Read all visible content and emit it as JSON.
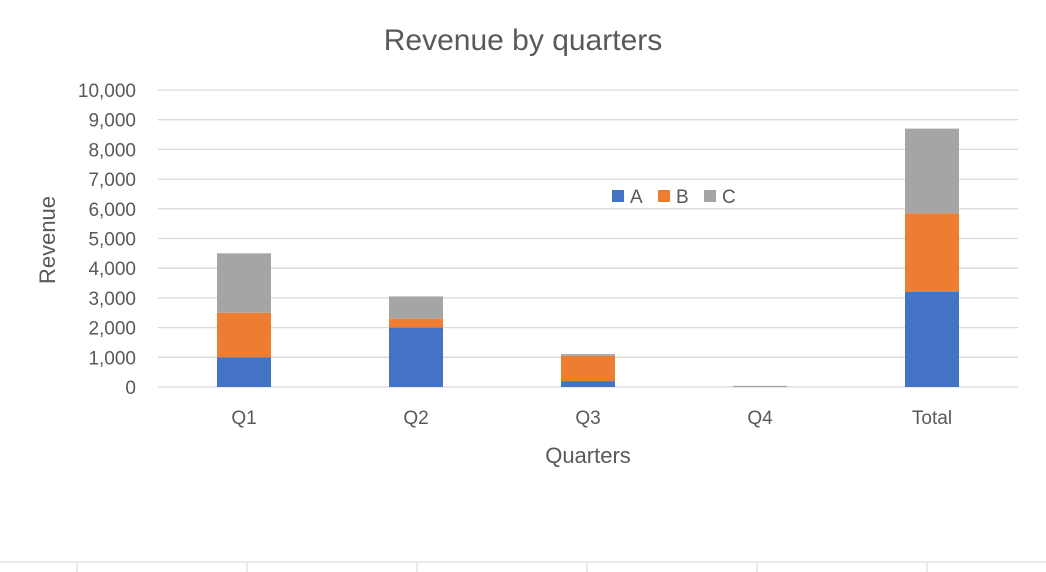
{
  "chart_data": {
    "type": "bar",
    "stacked": true,
    "title": "Revenue by quarters",
    "xlabel": "Quarters",
    "ylabel": "Revenue",
    "categories": [
      "Q1",
      "Q2",
      "Q3",
      "Q4",
      "Total"
    ],
    "series": [
      {
        "name": "A",
        "color": "#4472C4",
        "values": [
          1000,
          2000,
          200,
          0,
          3200
        ]
      },
      {
        "name": "B",
        "color": "#ED7D31",
        "values": [
          1500,
          300,
          850,
          0,
          2650
        ]
      },
      {
        "name": "C",
        "color": "#A5A5A5",
        "values": [
          2000,
          750,
          60,
          40,
          2850
        ]
      }
    ],
    "ylim": [
      0,
      10000
    ],
    "yticks": [
      "0",
      "1,000",
      "2,000",
      "3,000",
      "4,000",
      "5,000",
      "6,000",
      "7,000",
      "8,000",
      "9,000",
      "10,000"
    ],
    "grid": true,
    "legend_position": "inside-top-center"
  }
}
